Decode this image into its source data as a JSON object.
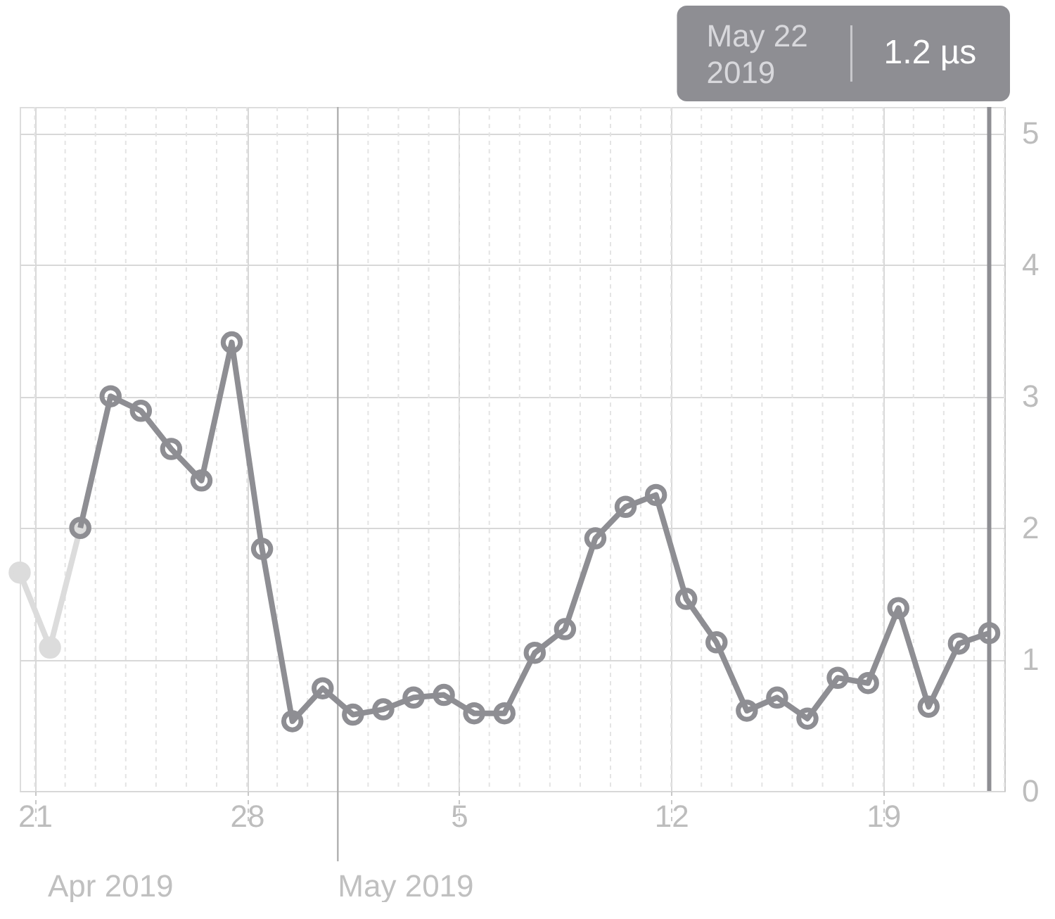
{
  "chart_data": {
    "type": "line",
    "xlim": [
      "2019-04-20T12:00",
      "2019-05-23T00:00"
    ],
    "xticks": [
      {
        "value": "2019-04-21",
        "label": "21"
      },
      {
        "value": "2019-04-28",
        "label": "28"
      },
      {
        "value": "2019-05-05",
        "label": "5"
      },
      {
        "value": "2019-05-12",
        "label": "12"
      },
      {
        "value": "2019-05-19",
        "label": "19"
      }
    ],
    "ylim": [
      0,
      5.2
    ],
    "yticks": [
      0,
      1,
      2,
      3,
      4,
      5
    ],
    "grid": true,
    "marker": "circle",
    "line_style": "solid",
    "series": [
      {
        "color": "#dcdcdc",
        "x": [
          "2019-04-20T12:00",
          "2019-04-21T12:00",
          "2019-04-22T12:00"
        ],
        "values": [
          1.66,
          1.09,
          2.0
        ]
      },
      {
        "color": "#8e8e93",
        "x": [
          "2019-04-22T12:00",
          "2019-04-23T12:00",
          "2019-04-24T12:00",
          "2019-04-25T12:00",
          "2019-04-26T12:00",
          "2019-04-27T12:00",
          "2019-04-28T12:00",
          "2019-04-29T12:00",
          "2019-04-30T12:00",
          "2019-05-01T12:00",
          "2019-05-02T12:00",
          "2019-05-03T12:00",
          "2019-05-04T12:00",
          "2019-05-05T12:00",
          "2019-05-06T12:00",
          "2019-05-07T12:00",
          "2019-05-08T12:00",
          "2019-05-09T12:00",
          "2019-05-10T12:00",
          "2019-05-11T12:00",
          "2019-05-12T12:00",
          "2019-05-13T12:00",
          "2019-05-14T12:00",
          "2019-05-15T12:00",
          "2019-05-16T12:00",
          "2019-05-17T12:00",
          "2019-05-18T12:00",
          "2019-05-19T12:00",
          "2019-05-20T12:00",
          "2019-05-21T12:00",
          "2019-05-22T12:00"
        ],
        "values": [
          2.0,
          3.0,
          2.89,
          2.6,
          2.36,
          3.41,
          1.84,
          0.53,
          0.78,
          0.58,
          0.62,
          0.71,
          0.73,
          0.59,
          0.59,
          1.05,
          1.23,
          1.92,
          2.16,
          2.25,
          1.46,
          1.13,
          0.61,
          0.71,
          0.55,
          0.86,
          0.82,
          1.39,
          0.64,
          1.12,
          1.2
        ]
      }
    ],
    "ref_lines": [
      {
        "axis": "x",
        "value": "2019-05-22T12:00",
        "color": "#8e8e93"
      },
      {
        "axis": "x",
        "value": "2019-05-01",
        "color": "#b0b0b0"
      }
    ],
    "annotations": [
      "Apr 2019",
      "May 2019",
      "May 22 2019",
      "1.2 µs"
    ]
  }
}
